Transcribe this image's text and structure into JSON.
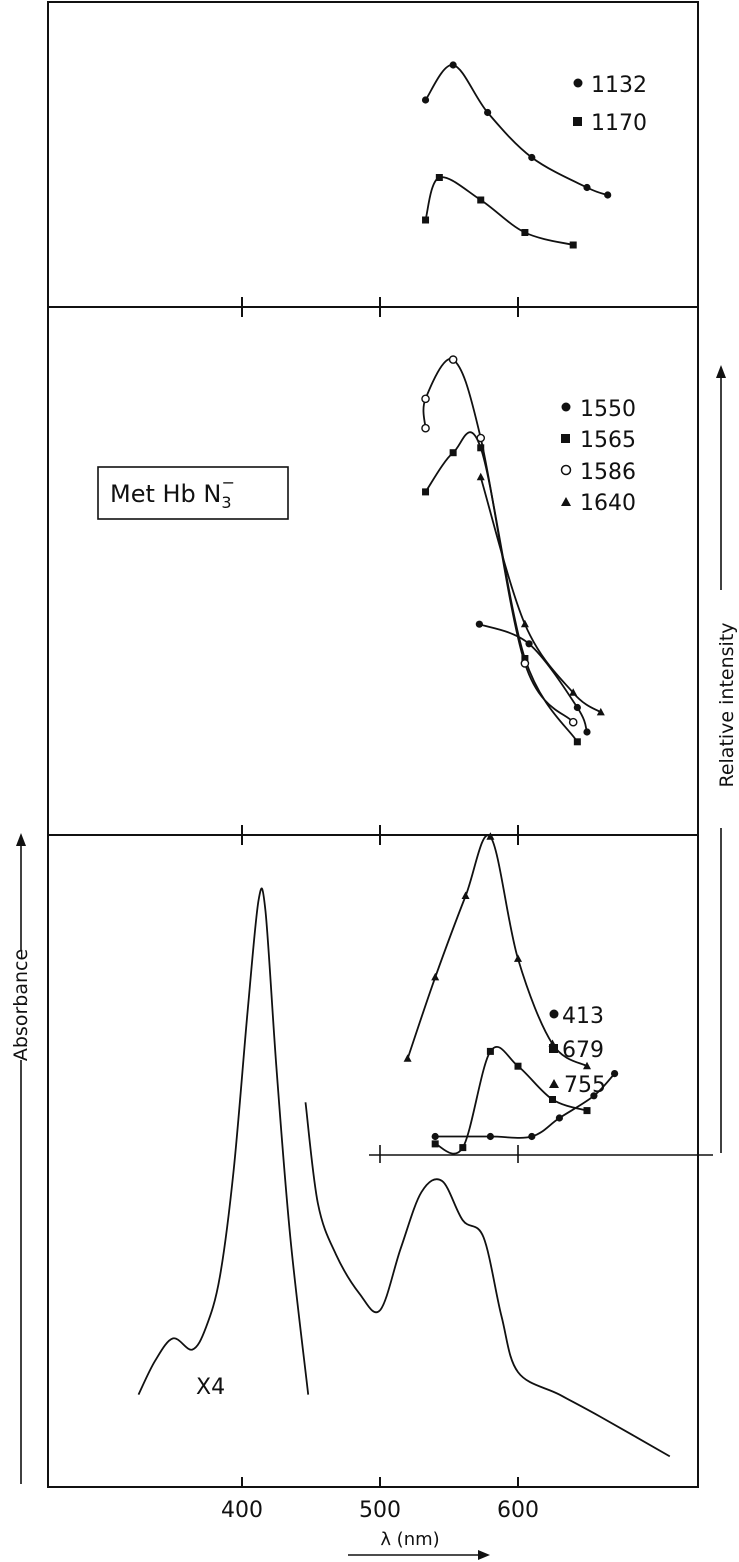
{
  "chart_data": [
    {
      "type": "line",
      "panel": "top",
      "legend_placement": "top-right",
      "series": [
        {
          "name": "1132",
          "marker": "circle",
          "x": [
            533,
            553,
            578,
            610,
            650,
            665
          ],
          "y": [
            0.78,
            0.92,
            0.73,
            0.55,
            0.43,
            0.4
          ]
        },
        {
          "name": "1170",
          "marker": "square",
          "x": [
            533,
            543,
            573,
            605,
            640
          ],
          "y": [
            0.3,
            0.47,
            0.38,
            0.25,
            0.2
          ]
        }
      ]
    },
    {
      "type": "line",
      "panel": "middle",
      "legend_placement": "top-right",
      "series": [
        {
          "name": "1550",
          "marker": "circle",
          "x": [
            572,
            608,
            643,
            650
          ],
          "y": [
            0.42,
            0.38,
            0.25,
            0.2
          ]
        },
        {
          "name": "1565",
          "marker": "square",
          "x": [
            533,
            553,
            573,
            605,
            643
          ],
          "y": [
            0.69,
            0.77,
            0.78,
            0.35,
            0.18
          ]
        },
        {
          "name": "1586",
          "marker": "open-circle",
          "x": [
            533,
            533,
            553,
            573,
            605,
            640
          ],
          "y": [
            0.82,
            0.88,
            0.96,
            0.8,
            0.34,
            0.22
          ]
        },
        {
          "name": "1640",
          "marker": "triangle",
          "x": [
            573,
            605,
            640,
            660
          ],
          "y": [
            0.72,
            0.42,
            0.28,
            0.24
          ]
        }
      ]
    },
    {
      "type": "line",
      "panel": "bottom",
      "xlabel": "λ (nm)",
      "ylabel": "Absorbance",
      "right_label": "Relative intensity",
      "x_ticks": [
        400,
        500,
        600
      ],
      "xlim": [
        300,
        710
      ],
      "annotation": "X4",
      "series": [
        {
          "name": "Absorbance",
          "x": [
            325,
            337,
            350,
            364,
            374,
            384,
            394,
            404,
            412,
            417,
            425,
            435,
            448
          ],
          "y": [
            0.12,
            0.18,
            0.22,
            0.2,
            0.24,
            0.33,
            0.52,
            0.8,
            1.0,
            0.98,
            0.7,
            0.4,
            0.12
          ]
        },
        {
          "name": "Absorbance X4",
          "x": [
            446,
            455,
            468,
            485,
            500,
            515,
            530,
            545,
            560,
            575,
            588,
            600,
            630,
            660,
            710
          ],
          "y": [
            0.64,
            0.46,
            0.37,
            0.3,
            0.27,
            0.38,
            0.48,
            0.5,
            0.43,
            0.4,
            0.26,
            0.16,
            0.12,
            0.08,
            0.01
          ]
        }
      ],
      "inset": {
        "legend_placement": "top-right",
        "series": [
          {
            "name": "413",
            "marker": "circle",
            "x": [
              540,
              580,
              610,
              630,
              655,
              670
            ],
            "y": [
              0.05,
              0.05,
              0.05,
              0.1,
              0.16,
              0.22
            ]
          },
          {
            "name": "679",
            "marker": "square",
            "x": [
              540,
              560,
              580,
              600,
              625,
              650
            ],
            "y": [
              0.03,
              0.02,
              0.28,
              0.24,
              0.15,
              0.12
            ]
          },
          {
            "name": "755",
            "marker": "triangle",
            "x": [
              520,
              540,
              562,
              580,
              600,
              625,
              650
            ],
            "y": [
              0.26,
              0.48,
              0.7,
              0.86,
              0.53,
              0.3,
              0.24
            ]
          }
        ]
      }
    }
  ],
  "labels": {
    "panel_tag": "Met Hb N",
    "panel_tag_sub": "3",
    "panel_tag_sup": "−",
    "x_axis": "λ (nm)",
    "y_axis_left": "Absorbance",
    "y_axis_right": "Relative intensity",
    "factor": "X4",
    "x_ticks": [
      "400",
      "500",
      "600"
    ],
    "legend_top": [
      "1132",
      "1170"
    ],
    "legend_mid": [
      "1550",
      "1565",
      "1586",
      "1640"
    ],
    "legend_bottom": [
      "413",
      "679",
      "755"
    ]
  }
}
